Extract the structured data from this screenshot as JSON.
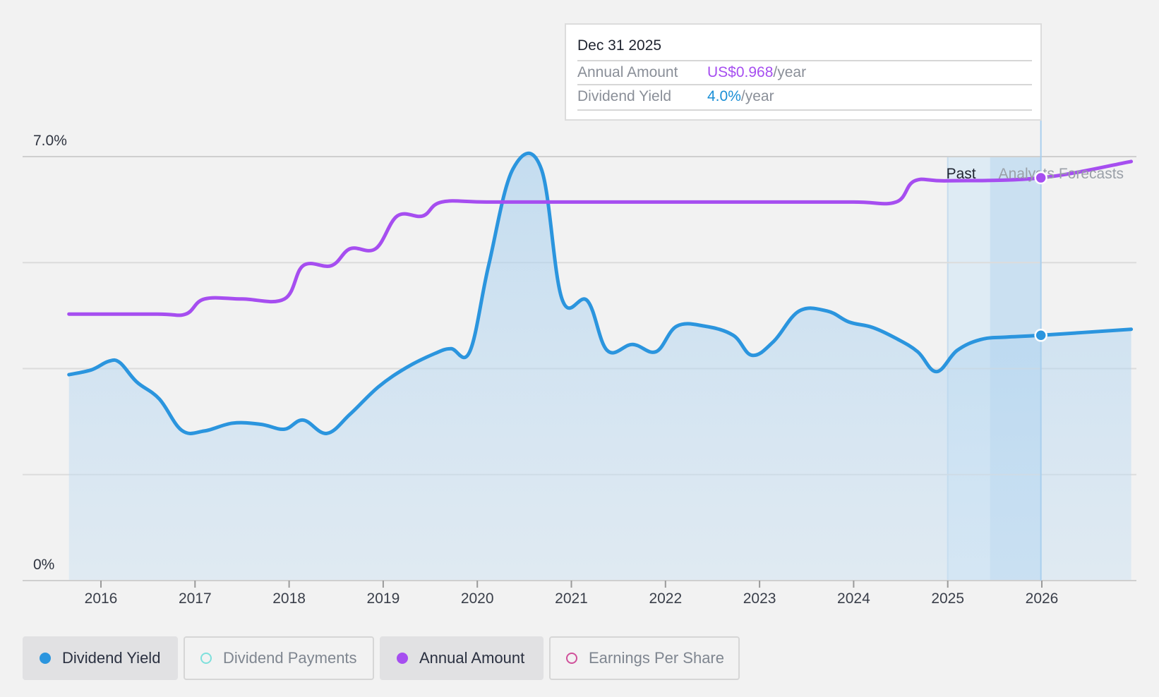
{
  "chart_data": {
    "type": "line",
    "y_axis": {
      "ticks": [
        "7.0%",
        "0%"
      ],
      "ylim": [
        0,
        7
      ]
    },
    "x_axis": {
      "ticks": [
        "2016",
        "2017",
        "2018",
        "2019",
        "2020",
        "2021",
        "2022",
        "2023",
        "2024",
        "2025",
        "2026"
      ],
      "xlim": [
        2015.75,
        2026.95
      ]
    },
    "grid": true,
    "region_labels": {
      "past": "Past",
      "forecast": "Analysts Forecasts"
    },
    "series": [
      {
        "name": "Dividend Yield",
        "color": "#2b95de",
        "area": true,
        "points": [
          [
            2015.66,
            3.4
          ],
          [
            2015.9,
            3.48
          ],
          [
            2016.08,
            3.62
          ],
          [
            2016.2,
            3.6
          ],
          [
            2016.38,
            3.28
          ],
          [
            2016.62,
            3.0
          ],
          [
            2016.86,
            2.48
          ],
          [
            2017.1,
            2.47
          ],
          [
            2017.4,
            2.6
          ],
          [
            2017.7,
            2.58
          ],
          [
            2017.95,
            2.5
          ],
          [
            2018.15,
            2.65
          ],
          [
            2018.4,
            2.43
          ],
          [
            2018.65,
            2.75
          ],
          [
            2018.95,
            3.2
          ],
          [
            2019.25,
            3.52
          ],
          [
            2019.55,
            3.75
          ],
          [
            2019.72,
            3.83
          ],
          [
            2019.92,
            3.78
          ],
          [
            2020.12,
            5.2
          ],
          [
            2020.38,
            6.8
          ],
          [
            2020.68,
            6.8
          ],
          [
            2020.9,
            4.65
          ],
          [
            2021.17,
            4.62
          ],
          [
            2021.38,
            3.8
          ],
          [
            2021.65,
            3.9
          ],
          [
            2021.9,
            3.78
          ],
          [
            2022.12,
            4.2
          ],
          [
            2022.42,
            4.2
          ],
          [
            2022.72,
            4.05
          ],
          [
            2022.92,
            3.72
          ],
          [
            2023.15,
            3.95
          ],
          [
            2023.42,
            4.45
          ],
          [
            2023.72,
            4.45
          ],
          [
            2023.95,
            4.27
          ],
          [
            2024.2,
            4.18
          ],
          [
            2024.45,
            4.0
          ],
          [
            2024.68,
            3.78
          ],
          [
            2024.88,
            3.45
          ],
          [
            2025.1,
            3.8
          ],
          [
            2025.35,
            3.98
          ],
          [
            2025.62,
            4.02
          ],
          [
            2025.99,
            4.05
          ],
          [
            2026.95,
            4.15
          ]
        ]
      },
      {
        "name": "Annual Amount",
        "color": "#a64ef0",
        "area": false,
        "points": [
          [
            2015.66,
            4.4
          ],
          [
            2016.6,
            4.4
          ],
          [
            2016.9,
            4.4
          ],
          [
            2017.1,
            4.65
          ],
          [
            2017.5,
            4.65
          ],
          [
            2017.95,
            4.65
          ],
          [
            2018.15,
            5.2
          ],
          [
            2018.45,
            5.2
          ],
          [
            2018.65,
            5.48
          ],
          [
            2018.92,
            5.48
          ],
          [
            2019.15,
            6.02
          ],
          [
            2019.42,
            6.02
          ],
          [
            2019.62,
            6.25
          ],
          [
            2020.1,
            6.25
          ],
          [
            2021.0,
            6.25
          ],
          [
            2022.0,
            6.25
          ],
          [
            2023.0,
            6.25
          ],
          [
            2024.0,
            6.25
          ],
          [
            2024.45,
            6.25
          ],
          [
            2024.65,
            6.6
          ],
          [
            2025.0,
            6.6
          ],
          [
            2025.99,
            6.65
          ],
          [
            2026.95,
            6.92
          ]
        ]
      }
    ],
    "highlight": {
      "x": 2025.99,
      "date": "Dec 31 2025"
    }
  },
  "tooltip": {
    "date": "Dec 31 2025",
    "rows": [
      {
        "label": "Annual Amount",
        "value": "US$0.968",
        "unit": "/year"
      },
      {
        "label": "Dividend Yield",
        "value": "4.0%",
        "unit": "/year"
      }
    ]
  },
  "legend": [
    {
      "label": "Dividend Yield",
      "color": "#2b95de",
      "filled": true,
      "active": true
    },
    {
      "label": "Dividend Payments",
      "color": "#7ee0dc",
      "filled": false,
      "active": false
    },
    {
      "label": "Annual Amount",
      "color": "#a64ef0",
      "filled": true,
      "active": true
    },
    {
      "label": "Earnings Per Share",
      "color": "#d0509a",
      "filled": false,
      "active": false
    }
  ]
}
